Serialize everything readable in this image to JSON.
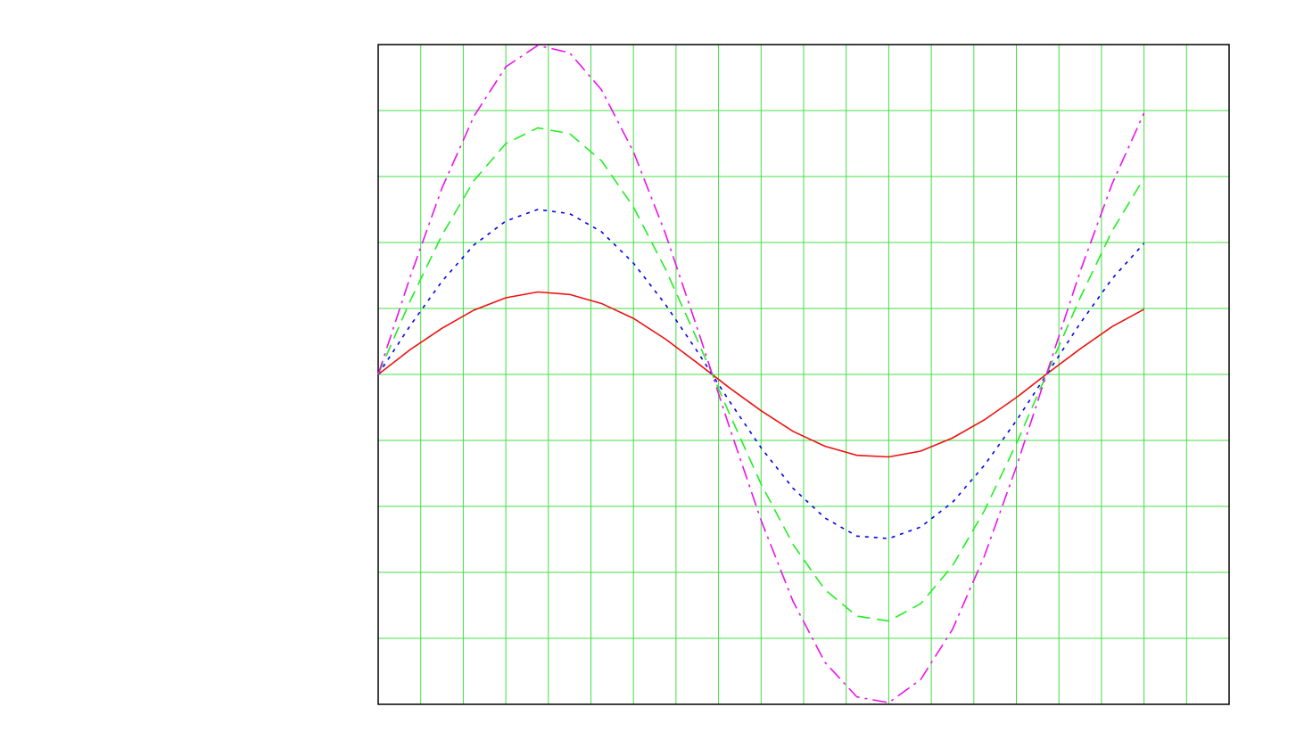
{
  "chart_data": {
    "type": "line",
    "x": [
      0,
      0.3,
      0.6,
      0.9,
      1.2,
      1.5,
      1.8,
      2.1,
      2.4,
      2.7,
      3.0,
      3.3,
      3.6,
      3.9,
      4.2,
      4.5,
      4.8,
      5.1,
      5.4,
      5.7,
      6.0,
      6.3,
      6.6,
      6.9,
      7.2
    ],
    "series": [
      {
        "color": "#ee1111",
        "dash": "none",
        "values": [
          0,
          0.3,
          0.56,
          0.78,
          0.93,
          1,
          0.97,
          0.86,
          0.68,
          0.43,
          0.14,
          -0.16,
          -0.44,
          -0.69,
          -0.87,
          -0.98,
          -1,
          -0.93,
          -0.77,
          -0.55,
          -0.28,
          0.02,
          0.31,
          0.58,
          0.79
        ]
      },
      {
        "color": "#0000ee",
        "dash": "4 6",
        "values": [
          0,
          0.59,
          1.13,
          1.57,
          1.86,
          2,
          1.95,
          1.73,
          1.35,
          0.85,
          0.28,
          -0.32,
          -0.89,
          -1.38,
          -1.74,
          -1.96,
          -1.99,
          -1.85,
          -1.55,
          -1.1,
          -0.56,
          0.03,
          0.62,
          1.16,
          1.59
        ]
      },
      {
        "color": "#22ee22",
        "dash": "14 8",
        "values": [
          0,
          0.89,
          1.69,
          2.35,
          2.8,
          2.99,
          2.92,
          2.59,
          2.03,
          1.28,
          0.42,
          -0.47,
          -1.33,
          -2.06,
          -2.61,
          -2.93,
          -2.99,
          -2.78,
          -2.32,
          -1.65,
          -0.84,
          0.05,
          0.93,
          1.74,
          2.38
        ]
      },
      {
        "color": "#ee11ee",
        "dash": "16 6 3 6",
        "values": [
          0,
          1.18,
          2.26,
          3.13,
          3.73,
          3.99,
          3.9,
          3.45,
          2.7,
          1.71,
          0.56,
          -0.63,
          -1.77,
          -2.75,
          -3.49,
          -3.91,
          -3.98,
          -3.7,
          -3.09,
          -2.2,
          -1.12,
          0.07,
          1.25,
          2.31,
          3.17
        ]
      }
    ],
    "xlim": [
      0,
      8
    ],
    "xticks": [
      0,
      0.4,
      0.8,
      1.2,
      1.6,
      2,
      2.4,
      2.8,
      3.2,
      3.6,
      4,
      4.4,
      4.8,
      5.2,
      5.6,
      6,
      6.4,
      6.8,
      7.2,
      7.6,
      8
    ],
    "ylim": [
      -4,
      4
    ],
    "yticks": [
      -4,
      -3.2,
      -2.4,
      -1.6,
      -0.8,
      0,
      0.8,
      1.6,
      2.4,
      3.2,
      4
    ],
    "grid": true,
    "grid_color": "#44dd44"
  }
}
